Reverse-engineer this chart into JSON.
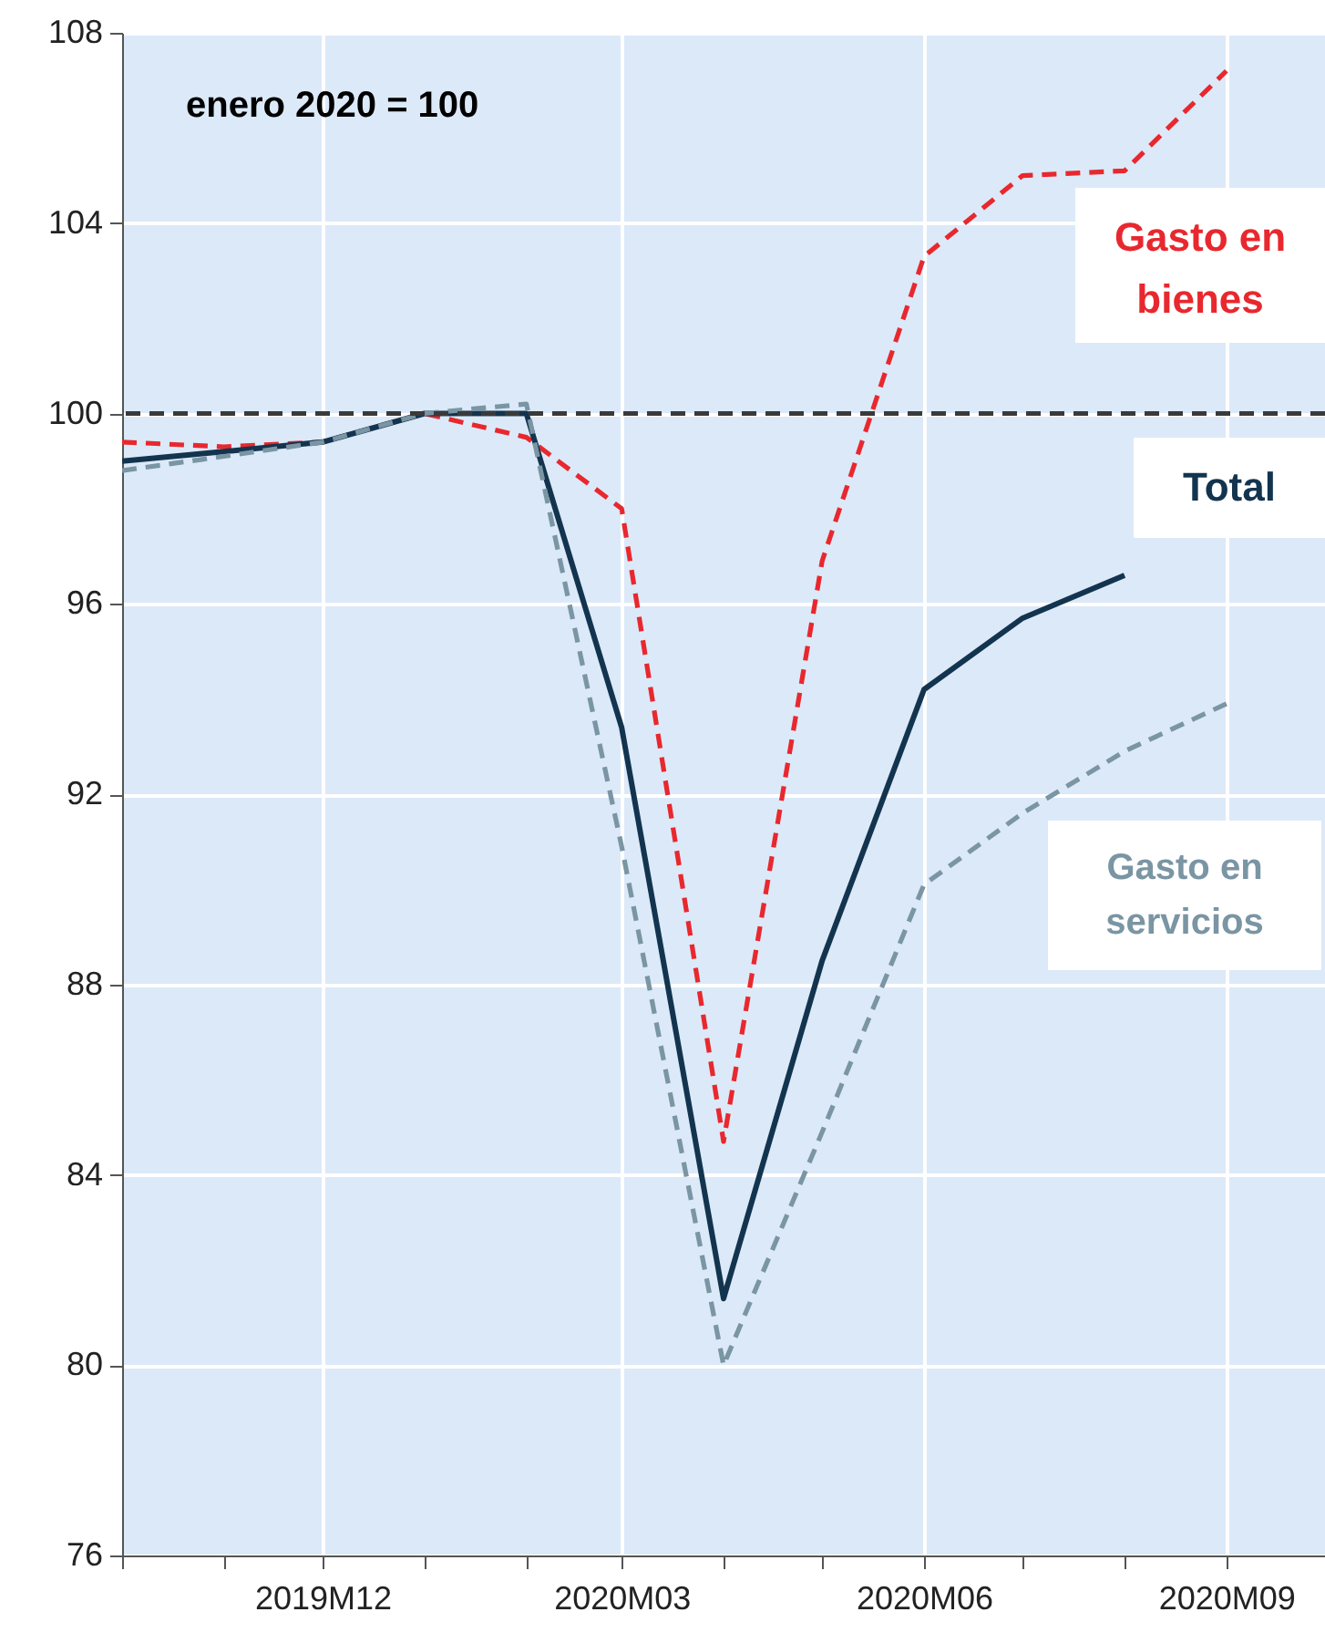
{
  "chart_data": {
    "type": "line",
    "annotations": [
      "enero 2020 = 100"
    ],
    "x": [
      "2019-10",
      "2019-11",
      "2019-12",
      "2020-01",
      "2020-02",
      "2020-03",
      "2020-04",
      "2020-05",
      "2020-06",
      "2020-07",
      "2020-08",
      "2020-09"
    ],
    "series": [
      {
        "name": "Gasto en bienes",
        "color": "#e8282e",
        "line_style": "dashed",
        "values": [
          99.4,
          99.3,
          99.4,
          100.0,
          99.5,
          98.0,
          84.7,
          96.9,
          103.3,
          105.0,
          105.1,
          107.2
        ]
      },
      {
        "name": "Total",
        "color": "#13344f",
        "line_style": "solid",
        "values": [
          99.0,
          99.2,
          99.4,
          100.0,
          100.0,
          93.4,
          81.4,
          88.5,
          94.2,
          95.7,
          96.6,
          null
        ]
      },
      {
        "name": "Gasto en servicios",
        "color": "#7a95a3",
        "line_style": "dashed",
        "values": [
          98.8,
          99.1,
          99.4,
          100.0,
          100.2,
          90.9,
          80.0,
          84.9,
          90.1,
          91.6,
          92.9,
          93.9
        ]
      }
    ],
    "xlim": [
      "2019-10",
      "2020-10"
    ],
    "xticks": [
      {
        "value": "2019-10",
        "label": null
      },
      {
        "value": "2019-11",
        "label": null
      },
      {
        "value": "2019-12",
        "label": "2019M12"
      },
      {
        "value": "2020-01",
        "label": null
      },
      {
        "value": "2020-02",
        "label": null
      },
      {
        "value": "2020-03",
        "label": "2020M03"
      },
      {
        "value": "2020-04",
        "label": null
      },
      {
        "value": "2020-05",
        "label": null
      },
      {
        "value": "2020-06",
        "label": "2020M06"
      },
      {
        "value": "2020-07",
        "label": null
      },
      {
        "value": "2020-08",
        "label": null
      },
      {
        "value": "2020-09",
        "label": "2020M09"
      }
    ],
    "ylim": [
      76,
      108
    ],
    "yticks": [
      76,
      80,
      84,
      88,
      92,
      96,
      100,
      104,
      108
    ],
    "ref_lines": [
      {
        "axis": "y",
        "value": 100,
        "color": "#3a3a3a",
        "line_style": "dashed"
      }
    ],
    "grid": true,
    "legend": false,
    "marker": "none"
  }
}
